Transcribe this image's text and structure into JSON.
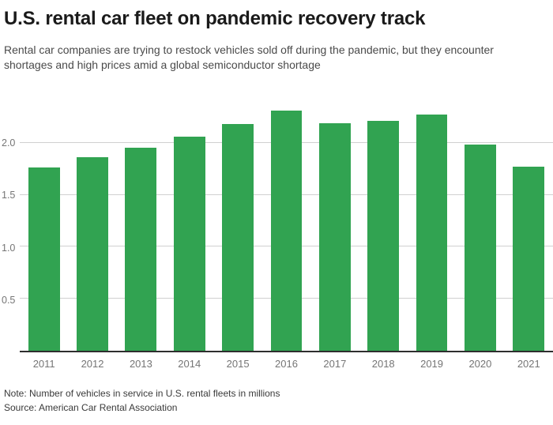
{
  "header": {
    "title": "U.S. rental car fleet on pandemic recovery track",
    "subtitle_line1": "Rental car companies are trying to restock vehicles sold off during the pandemic, but they encounter",
    "subtitle_line2": "shortages and high prices amid a global semiconductor shortage"
  },
  "chart_data": {
    "type": "bar",
    "title": "U.S. rental car fleet on pandemic recovery track",
    "categories": [
      "2011",
      "2012",
      "2013",
      "2014",
      "2015",
      "2016",
      "2017",
      "2018",
      "2019",
      "2020",
      "2021"
    ],
    "values": [
      1.76,
      1.86,
      1.95,
      2.06,
      2.18,
      2.31,
      2.19,
      2.21,
      2.27,
      1.98,
      1.77
    ],
    "xlabel": "",
    "ylabel": "",
    "ylim": [
      0,
      2.5
    ],
    "y_ticks": [
      0.5,
      1.0,
      1.5,
      2.0
    ],
    "y_tick_labels": [
      "0.5",
      "1.0",
      "1.5",
      "2.0"
    ],
    "grid": true,
    "legend": "none"
  },
  "footer": {
    "note": "Note: Number of vehicles in service in U.S. rental fleets in millions",
    "source": "Source: American Car Rental Association"
  },
  "colors": {
    "bar": "#31a351",
    "gridline": "#d0d0d0",
    "axis_line": "#2e2e2e",
    "tick_label": "#757575",
    "title": "#1a1a1a",
    "subtitle": "#4a4a4a",
    "footer_text": "#3a3a3a",
    "background": "#ffffff"
  }
}
